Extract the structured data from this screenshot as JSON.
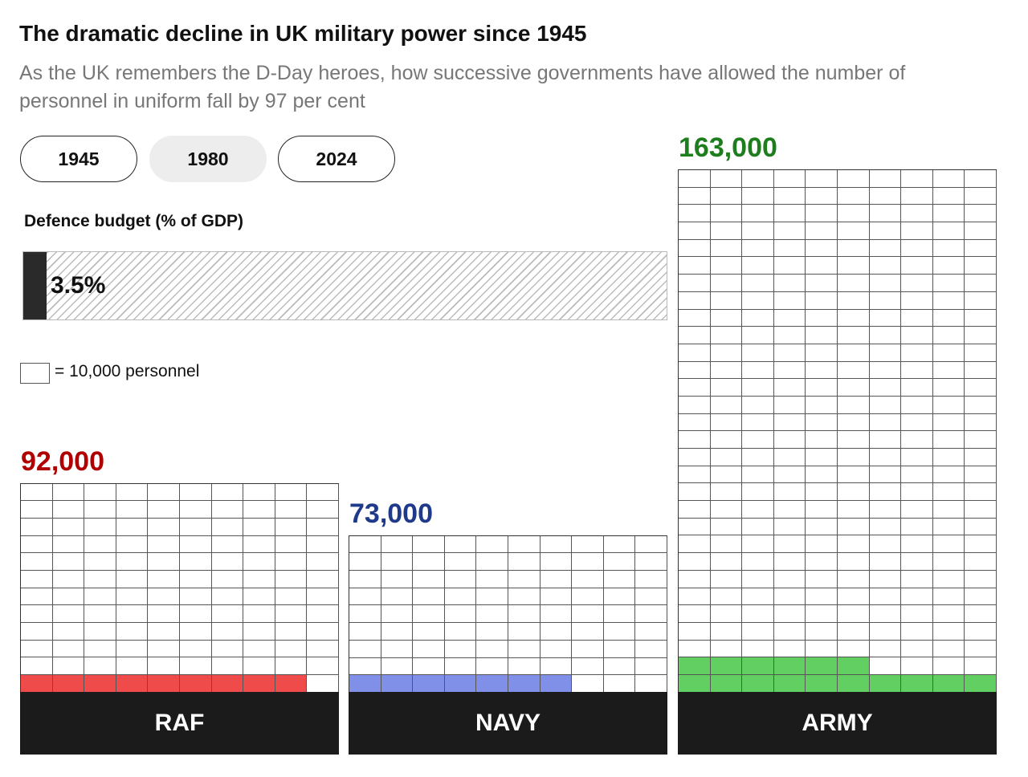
{
  "title": "The dramatic decline in UK military power since 1945",
  "subtitle": "As the UK remembers the D-Day heroes, how successive governments have allowed the number of personnel in uniform fall by 97 per cent",
  "year_buttons": [
    {
      "label": "1945",
      "active": false
    },
    {
      "label": "1980",
      "active": true
    },
    {
      "label": "2024",
      "active": false
    }
  ],
  "budget": {
    "label": "Defence budget (% of GDP)",
    "value_text": "3.5%",
    "value": 3.5
  },
  "legend": "= 10,000 personnel",
  "chart_data": {
    "type": "waffle",
    "unit": 10000,
    "columns": 10,
    "selected_year": "1980",
    "series": [
      {
        "name": "RAF",
        "value_text": "92,000",
        "value": 92000,
        "filled_cells": 9,
        "total_cells": 120,
        "color": "#ef4b4b",
        "label_color": "#b00000"
      },
      {
        "name": "NAVY",
        "value_text": "73,000",
        "value": 73000,
        "filled_cells": 7,
        "total_cells": 90,
        "color": "#8090e8",
        "label_color": "#1f3a8a"
      },
      {
        "name": "ARMY",
        "value_text": "163,000",
        "value": 163000,
        "filled_cells": 16,
        "total_cells": 300,
        "color": "#62cf62",
        "label_color": "#1e7e1e"
      }
    ]
  }
}
